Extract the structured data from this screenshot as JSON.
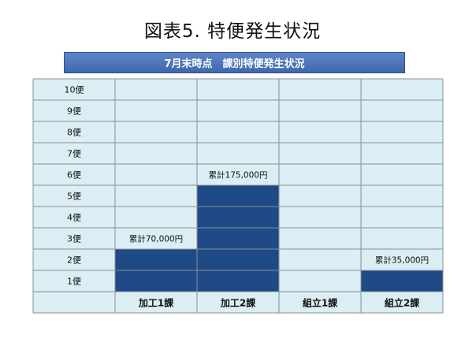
{
  "title": "図表5. 特便発生状況",
  "banner": "7月末時点　課別特便発生状況",
  "chart_data": {
    "type": "bar",
    "categories": [
      "加工1課",
      "加工2課",
      "組立1課",
      "組立2課"
    ],
    "values": [
      2,
      5,
      0,
      1
    ],
    "ylim": [
      0,
      10
    ],
    "y_tick_labels": [
      "10便",
      "9便",
      "8便",
      "7便",
      "6便",
      "5便",
      "4便",
      "3便",
      "2便",
      "1便"
    ],
    "annotations": [
      "累計70,000円",
      "累計175,000円",
      "",
      "累計35,000円"
    ],
    "colors": {
      "bar": "#1f4a85",
      "cell": "#dbeef4",
      "grid": "#8a8f99"
    }
  }
}
